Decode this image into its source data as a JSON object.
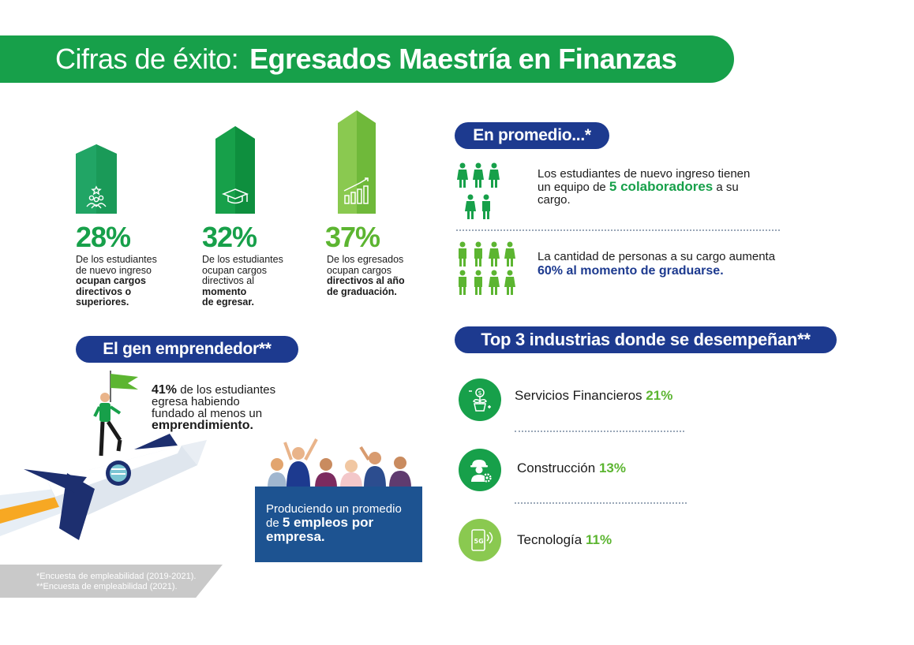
{
  "header": {
    "title_light": "Cifras de éxito:",
    "title_bold": "Egresados Maestría en Finanzas"
  },
  "stats": [
    {
      "pct": "28%",
      "line1": "De los estudiantes",
      "line2": "de nuevo ingreso",
      "bold1": "ocupan cargos",
      "bold2": "directivos o",
      "bold3": "superiores.",
      "color": "#17a04a"
    },
    {
      "pct": "32%",
      "line1": "De los estudiantes",
      "line2": "ocupan cargos",
      "line3": "directivos al",
      "bold1": "momento",
      "bold2": "de egresar.",
      "color": "#17a04a"
    },
    {
      "pct": "37%",
      "line1": "De los egresados",
      "line2": "ocupan cargos",
      "bold1": "directivos al año",
      "bold2": "de graduación.",
      "color": "#5cb531"
    }
  ],
  "average": {
    "pill": "En promedio...*",
    "item1_pre": "Los estudiantes de nuevo ingreso tienen",
    "item1_mid": "un equipo de",
    "item1_hl": "5 colaboradores",
    "item1_post": "a su",
    "item1_end": "cargo.",
    "item2_pre": "La cantidad de personas a su cargo aumenta",
    "item2_hl": "60% al momento de graduarse."
  },
  "industries": {
    "pill": "Top 3 industrias donde se desempeñan**",
    "items": [
      {
        "label": "Servicios Financieros",
        "pct": "21%",
        "icon": "money-plant-icon"
      },
      {
        "label": "Construcción",
        "pct": "13%",
        "icon": "worker-gear-icon"
      },
      {
        "label": "Tecnología",
        "pct": "11%",
        "icon": "phone-5g-icon"
      }
    ]
  },
  "entrepreneur": {
    "pill": "El gen emprendedor**",
    "pct": "41%",
    "t1": "de los estudiantes",
    "t2": "egresa habiendo",
    "t3": "fundado al menos un",
    "bold": "emprendimiento.",
    "box_line1": "Produciendo un promedio",
    "box_line2_pre": "de",
    "box_line2_bold": "5 empleos por",
    "box_line3_bold": "empresa."
  },
  "footnotes": {
    "f1": "*Encuesta de empleabilidad (2019-2021).",
    "f2": "**Encuesta de empleabilidad (2021)."
  },
  "colors": {
    "green": "#17a04a",
    "light_green": "#5cb531",
    "navy": "#1d3a8f",
    "blue_box": "#1d5391"
  }
}
